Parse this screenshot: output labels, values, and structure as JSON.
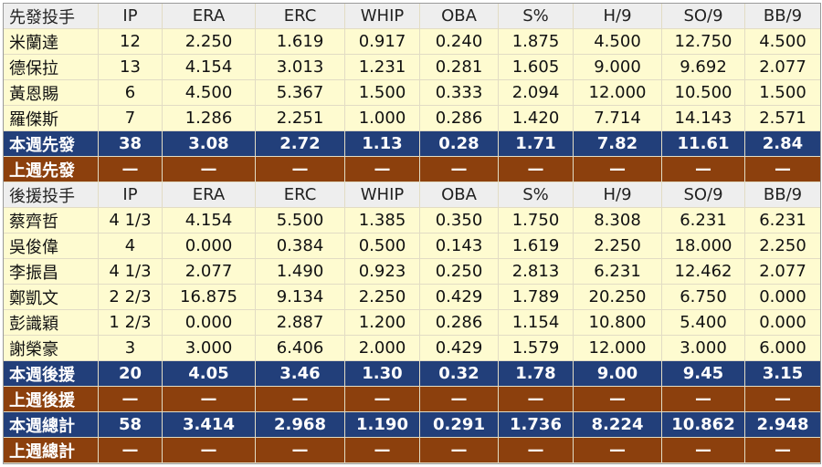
{
  "columns": [
    "IP",
    "ERA",
    "ERC",
    "WHIP",
    "OBA",
    "S%",
    "H/9",
    "SO/9",
    "BB/9"
  ],
  "starters": {
    "header": "先發投手",
    "rows": [
      {
        "name": "米蘭達",
        "values": [
          "12",
          "2.250",
          "1.619",
          "0.917",
          "0.240",
          "1.875",
          "4.500",
          "12.750",
          "4.500"
        ]
      },
      {
        "name": "德保拉",
        "values": [
          "13",
          "4.154",
          "3.013",
          "1.231",
          "0.281",
          "1.605",
          "9.000",
          "9.692",
          "2.077"
        ]
      },
      {
        "name": "黃恩賜",
        "values": [
          "6",
          "4.500",
          "5.367",
          "1.500",
          "0.333",
          "2.094",
          "12.000",
          "10.500",
          "1.500"
        ]
      },
      {
        "name": "羅傑斯",
        "values": [
          "7",
          "1.286",
          "2.251",
          "1.000",
          "0.286",
          "1.420",
          "7.714",
          "14.143",
          "2.571"
        ]
      }
    ],
    "this_week": {
      "label": "本週先發",
      "values": [
        "38",
        "3.08",
        "2.72",
        "1.13",
        "0.28",
        "1.71",
        "7.82",
        "11.61",
        "2.84"
      ]
    },
    "last_week": {
      "label": "上週先發",
      "values": [
        "—",
        "—",
        "—",
        "—",
        "—",
        "—",
        "—",
        "—",
        "—"
      ]
    }
  },
  "relievers": {
    "header": "後援投手",
    "rows": [
      {
        "name": "蔡齊哲",
        "values": [
          "4 1/3",
          "4.154",
          "5.500",
          "1.385",
          "0.350",
          "1.750",
          "8.308",
          "6.231",
          "6.231"
        ]
      },
      {
        "name": "吳俊偉",
        "values": [
          "4",
          "0.000",
          "0.384",
          "0.500",
          "0.143",
          "1.619",
          "2.250",
          "18.000",
          "2.250"
        ]
      },
      {
        "name": "李振昌",
        "values": [
          "4 1/3",
          "2.077",
          "1.490",
          "0.923",
          "0.250",
          "2.813",
          "6.231",
          "12.462",
          "2.077"
        ]
      },
      {
        "name": "鄭凱文",
        "values": [
          "2 2/3",
          "16.875",
          "9.134",
          "2.250",
          "0.429",
          "1.789",
          "20.250",
          "6.750",
          "0.000"
        ]
      },
      {
        "name": "彭識穎",
        "values": [
          "1 2/3",
          "0.000",
          "2.887",
          "1.200",
          "0.286",
          "1.154",
          "10.800",
          "5.400",
          "0.000"
        ]
      },
      {
        "name": "謝榮豪",
        "values": [
          "3",
          "3.000",
          "6.406",
          "2.000",
          "0.429",
          "1.579",
          "12.000",
          "3.000",
          "6.000"
        ]
      }
    ],
    "this_week": {
      "label": "本週後援",
      "values": [
        "20",
        "4.05",
        "3.46",
        "1.30",
        "0.32",
        "1.78",
        "9.00",
        "9.45",
        "3.15"
      ]
    },
    "last_week": {
      "label": "上週後援",
      "values": [
        "—",
        "—",
        "—",
        "—",
        "—",
        "—",
        "—",
        "—",
        "—"
      ]
    }
  },
  "totals": {
    "this_week": {
      "label": "本週總計",
      "values": [
        "58",
        "3.414",
        "2.968",
        "1.190",
        "0.291",
        "1.736",
        "8.224",
        "10.862",
        "2.948"
      ]
    },
    "last_week": {
      "label": "上週總計",
      "values": [
        "—",
        "—",
        "—",
        "—",
        "—",
        "—",
        "—",
        "—",
        "—"
      ]
    }
  },
  "colors": {
    "header_bg": "#eeeeee",
    "data_bg": "#fefbd0",
    "this_week_bg": "#223f7a",
    "last_week_bg": "#8c400d"
  }
}
